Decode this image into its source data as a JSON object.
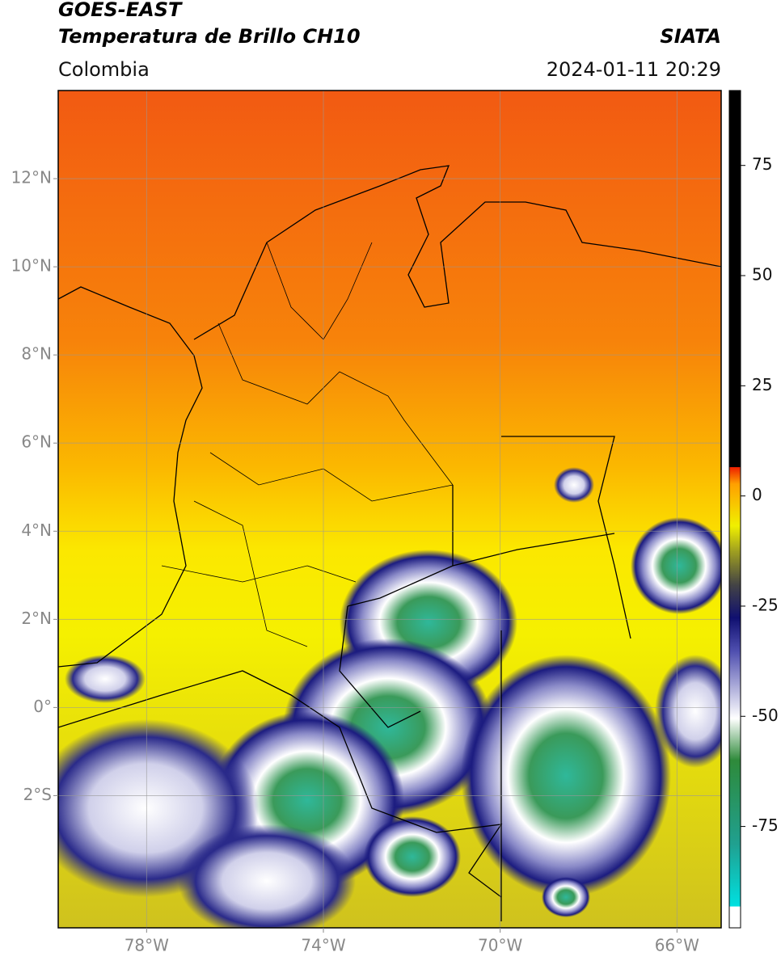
{
  "header": {
    "title": "GOES-EAST",
    "subtitle": "Temperatura de Brillo CH10",
    "source": "SIATA",
    "region": "Colombia",
    "datetime": "2024-01-11 20:29"
  },
  "map": {
    "xlim": [
      -80,
      -65
    ],
    "ylim": [
      -5,
      14
    ],
    "xticks": [
      {
        "value": -78,
        "label": "78°W"
      },
      {
        "value": -74,
        "label": "74°W"
      },
      {
        "value": -70,
        "label": "70°W"
      },
      {
        "value": -66,
        "label": "66°W"
      }
    ],
    "yticks": [
      {
        "value": 12,
        "label": "12°N"
      },
      {
        "value": 10,
        "label": "10°N"
      },
      {
        "value": 8,
        "label": "8°N"
      },
      {
        "value": 6,
        "label": "6°N"
      },
      {
        "value": 4,
        "label": "4°N"
      },
      {
        "value": 2,
        "label": "2°N"
      },
      {
        "value": 0,
        "label": "0°"
      },
      {
        "value": -2,
        "label": "2°S"
      }
    ],
    "grid": true
  },
  "colorbar": {
    "lim": [
      -98,
      92
    ],
    "ticks": [
      -75,
      -50,
      -25,
      0,
      25,
      50,
      75
    ]
  }
}
